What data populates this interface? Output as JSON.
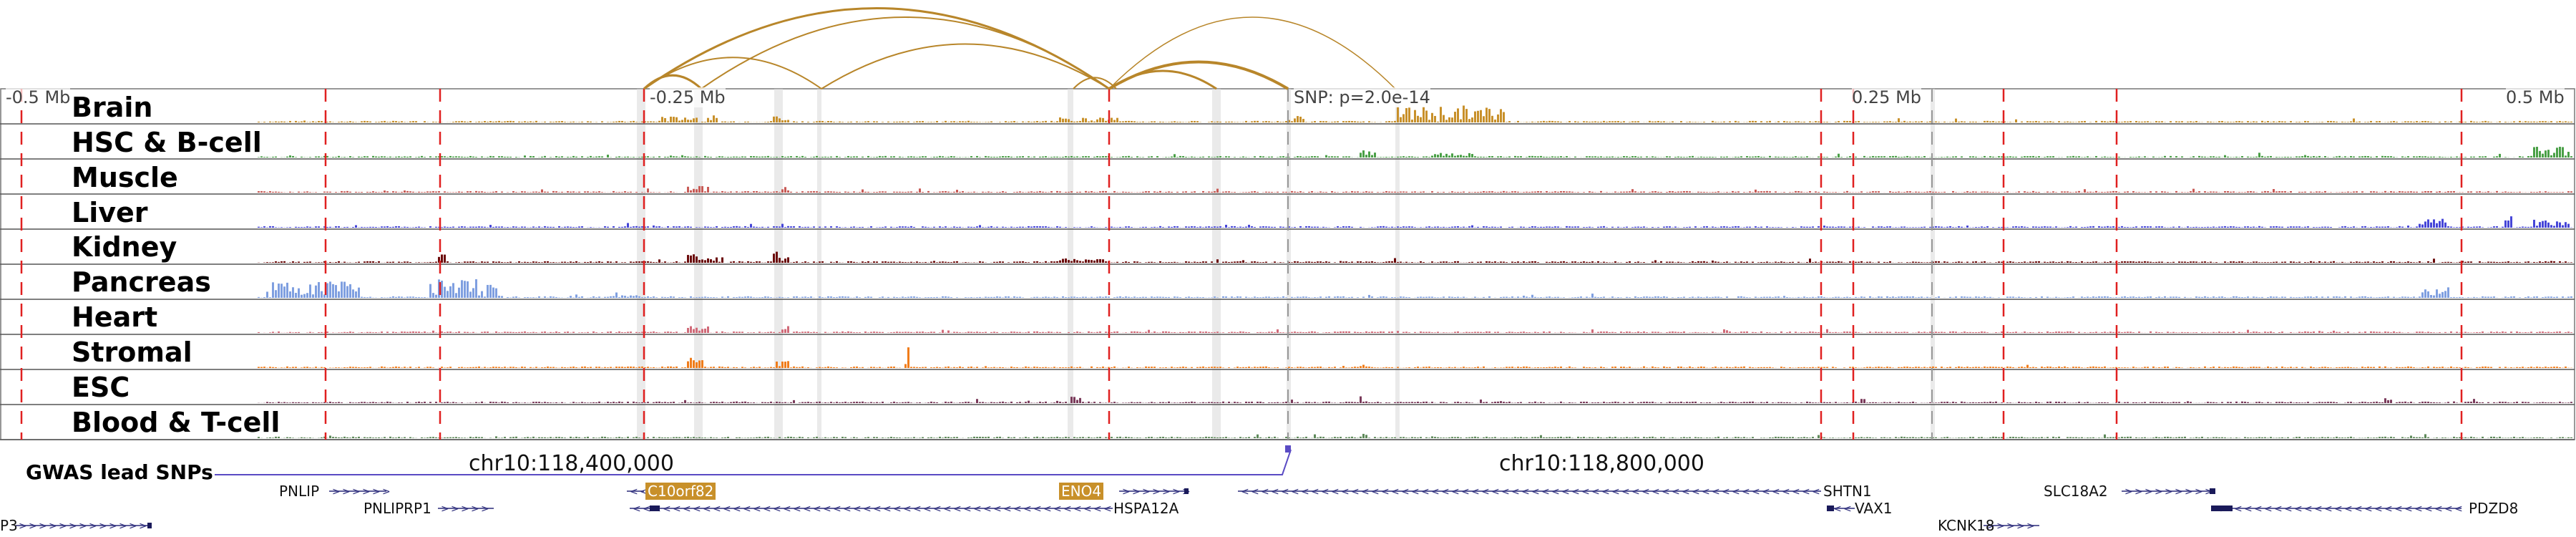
{
  "browser": {
    "region_labels": [
      "-0.5 Mb",
      "-0.25 Mb",
      "0.25 Mb",
      "0.5 Mb"
    ],
    "snp_label": "SNP: p=2.0e-14",
    "coordinates": [
      "chr10:118,400,000",
      "chr10:118,800,000"
    ],
    "gwas_label": "GWAS lead SNPs",
    "arc_color": "#b8862a",
    "gwas_color": "#5a4bc4",
    "marker_color": "#e02020"
  },
  "tracks": [
    {
      "name": "Brain",
      "color": "#c8902a",
      "peak_profile": "brain"
    },
    {
      "name": "HSC & B-cell",
      "color": "#4aa047",
      "peak_profile": "hsc"
    },
    {
      "name": "Muscle",
      "color": "#c85a55",
      "peak_profile": "muscle"
    },
    {
      "name": "Liver",
      "color": "#4646d8",
      "peak_profile": "liver"
    },
    {
      "name": "Kidney",
      "color": "#6b0a0a",
      "peak_profile": "kidney"
    },
    {
      "name": "Pancreas",
      "color": "#7f9fe0",
      "peak_profile": "pancreas"
    },
    {
      "name": "Heart",
      "color": "#d06a78",
      "peak_profile": "heart"
    },
    {
      "name": "Stromal",
      "color": "#f07c1a",
      "peak_profile": "stromal"
    },
    {
      "name": "ESC",
      "color": "#7a3a5a",
      "peak_profile": "esc"
    },
    {
      "name": "Blood & T-cell",
      "color": "#5e8a5a",
      "peak_profile": "blood"
    }
  ],
  "genes": [
    {
      "name": "PNLIP",
      "strand": "+"
    },
    {
      "name": "PNLIPRP1",
      "strand": "+"
    },
    {
      "name": "P3",
      "strand": "+"
    },
    {
      "name": "C10orf82",
      "strand": "-",
      "highlight": "#c8902a"
    },
    {
      "name": "ENO4",
      "strand": "+",
      "highlight": "#c8902a"
    },
    {
      "name": "HSPA12A",
      "strand": "-"
    },
    {
      "name": "SHTN1",
      "strand": "-"
    },
    {
      "name": "VAX1",
      "strand": "-"
    },
    {
      "name": "SLC18A2",
      "strand": "+"
    },
    {
      "name": "KCNK18",
      "strand": "+"
    },
    {
      "name": "PDZD8",
      "strand": "-"
    }
  ]
}
